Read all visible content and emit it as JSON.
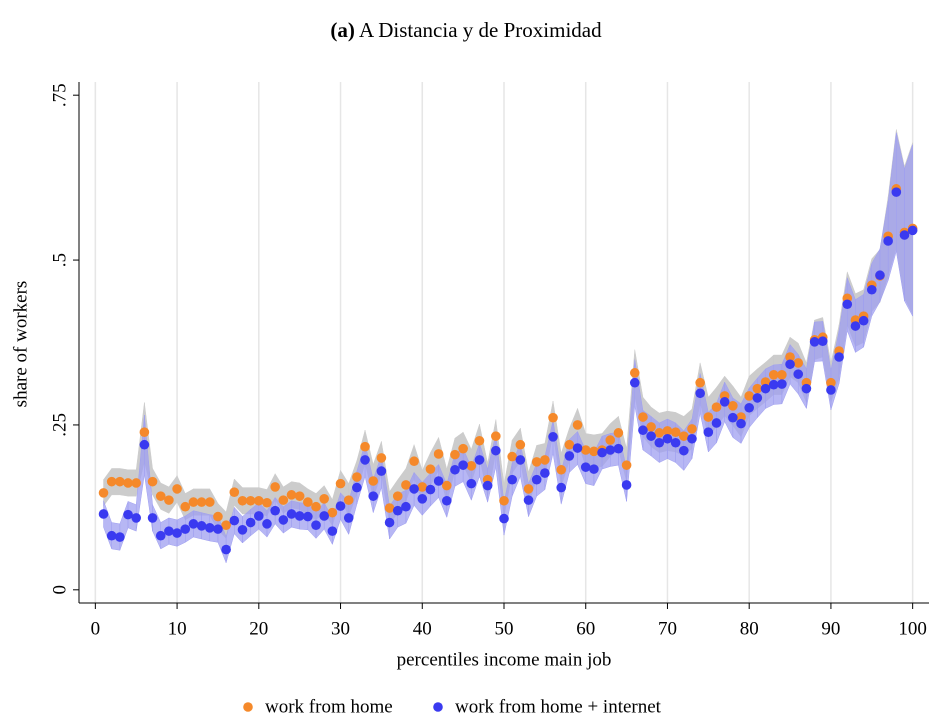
{
  "chart_data": {
    "type": "scatter",
    "panel_label": "(a)",
    "title": "A Distancia y de Proximidad",
    "xlabel": "percentiles income main job",
    "ylabel": "share of workers",
    "x": [
      1,
      2,
      3,
      4,
      5,
      6,
      7,
      8,
      9,
      10,
      11,
      12,
      13,
      14,
      15,
      16,
      17,
      18,
      19,
      20,
      21,
      22,
      23,
      24,
      25,
      26,
      27,
      28,
      29,
      30,
      31,
      32,
      33,
      34,
      35,
      36,
      37,
      38,
      39,
      40,
      41,
      42,
      43,
      44,
      45,
      46,
      47,
      48,
      49,
      50,
      51,
      52,
      53,
      54,
      55,
      56,
      57,
      58,
      59,
      60,
      61,
      62,
      63,
      64,
      65,
      66,
      67,
      68,
      69,
      70,
      71,
      72,
      73,
      74,
      75,
      76,
      77,
      78,
      79,
      80,
      81,
      82,
      83,
      84,
      85,
      86,
      87,
      88,
      89,
      90,
      91,
      92,
      93,
      94,
      95,
      96,
      97,
      98,
      99,
      100
    ],
    "xlim": [
      -2,
      102
    ],
    "xticks": [
      0,
      10,
      20,
      30,
      40,
      50,
      60,
      70,
      80,
      90,
      100
    ],
    "ylim": [
      -0.02,
      0.77
    ],
    "yticks": [
      0,
      {
        "value": 0.25,
        "label": ".25"
      },
      {
        "value": 0.5,
        "label": ".5"
      },
      {
        "value": 0.75,
        "label": ".75"
      }
    ],
    "grid_x": true,
    "legend": "bottom",
    "series": [
      {
        "name": "work from home",
        "color": "#f5892a",
        "band_color": "#cccccc",
        "values": [
          0.147,
          0.164,
          0.164,
          0.162,
          0.162,
          0.239,
          0.164,
          0.142,
          0.136,
          0.153,
          0.126,
          0.133,
          0.133,
          0.133,
          0.111,
          0.098,
          0.148,
          0.135,
          0.135,
          0.135,
          0.132,
          0.156,
          0.136,
          0.144,
          0.142,
          0.133,
          0.126,
          0.138,
          0.117,
          0.161,
          0.136,
          0.171,
          0.217,
          0.165,
          0.2,
          0.124,
          0.142,
          0.159,
          0.195,
          0.156,
          0.183,
          0.206,
          0.158,
          0.205,
          0.214,
          0.188,
          0.226,
          0.167,
          0.233,
          0.135,
          0.202,
          0.22,
          0.153,
          0.194,
          0.197,
          0.261,
          0.182,
          0.22,
          0.25,
          0.212,
          0.21,
          0.212,
          0.227,
          0.238,
          0.189,
          0.329,
          0.262,
          0.247,
          0.238,
          0.241,
          0.239,
          0.233,
          0.244,
          0.314,
          0.262,
          0.277,
          0.294,
          0.279,
          0.262,
          0.294,
          0.305,
          0.315,
          0.326,
          0.326,
          0.353,
          0.344,
          0.314,
          0.379,
          0.383,
          0.314,
          0.362,
          0.442,
          0.409,
          0.415,
          0.462,
          0.476,
          0.536,
          0.608,
          0.542,
          0.548
        ],
        "errors": [
          0.02,
          0.02,
          0.02,
          0.02,
          0.02,
          0.045,
          0.02,
          0.02,
          0.02,
          0.02,
          0.02,
          0.02,
          0.02,
          0.02,
          0.02,
          0.02,
          0.02,
          0.02,
          0.02,
          0.02,
          0.02,
          0.02,
          0.02,
          0.02,
          0.02,
          0.02,
          0.02,
          0.02,
          0.02,
          0.02,
          0.025,
          0.025,
          0.025,
          0.025,
          0.025,
          0.025,
          0.025,
          0.025,
          0.025,
          0.025,
          0.025,
          0.025,
          0.025,
          0.025,
          0.025,
          0.025,
          0.025,
          0.025,
          0.025,
          0.025,
          0.025,
          0.025,
          0.025,
          0.025,
          0.025,
          0.025,
          0.025,
          0.025,
          0.025,
          0.025,
          0.025,
          0.025,
          0.025,
          0.025,
          0.025,
          0.035,
          0.03,
          0.03,
          0.03,
          0.03,
          0.03,
          0.03,
          0.03,
          0.03,
          0.03,
          0.03,
          0.03,
          0.03,
          0.03,
          0.03,
          0.03,
          0.03,
          0.03,
          0.03,
          0.03,
          0.03,
          0.03,
          0.03,
          0.03,
          0.03,
          0.04,
          0.04,
          0.04,
          0.04,
          0.04,
          0.04,
          0.06,
          0.09,
          0.1,
          0.13
        ]
      },
      {
        "name": "work from home + internet",
        "color": "#3a3af0",
        "band_color": "#9f9ff0",
        "values": [
          0.115,
          0.082,
          0.08,
          0.114,
          0.109,
          0.22,
          0.109,
          0.082,
          0.089,
          0.086,
          0.092,
          0.1,
          0.097,
          0.094,
          0.092,
          0.061,
          0.105,
          0.091,
          0.102,
          0.112,
          0.1,
          0.12,
          0.106,
          0.115,
          0.112,
          0.111,
          0.098,
          0.112,
          0.089,
          0.127,
          0.109,
          0.155,
          0.197,
          0.142,
          0.18,
          0.102,
          0.12,
          0.126,
          0.153,
          0.138,
          0.152,
          0.165,
          0.135,
          0.182,
          0.189,
          0.161,
          0.197,
          0.158,
          0.211,
          0.108,
          0.167,
          0.197,
          0.136,
          0.167,
          0.177,
          0.232,
          0.155,
          0.203,
          0.215,
          0.186,
          0.183,
          0.208,
          0.212,
          0.214,
          0.159,
          0.314,
          0.242,
          0.233,
          0.223,
          0.229,
          0.223,
          0.211,
          0.229,
          0.298,
          0.239,
          0.253,
          0.285,
          0.261,
          0.252,
          0.276,
          0.291,
          0.305,
          0.311,
          0.312,
          0.342,
          0.327,
          0.305,
          0.376,
          0.377,
          0.303,
          0.353,
          0.433,
          0.4,
          0.408,
          0.455,
          0.477,
          0.529,
          0.603,
          0.538,
          0.545
        ],
        "errors": [
          0.02,
          0.02,
          0.02,
          0.02,
          0.02,
          0.045,
          0.02,
          0.02,
          0.02,
          0.02,
          0.02,
          0.02,
          0.02,
          0.02,
          0.02,
          0.02,
          0.02,
          0.02,
          0.02,
          0.02,
          0.02,
          0.02,
          0.02,
          0.02,
          0.02,
          0.02,
          0.02,
          0.02,
          0.02,
          0.02,
          0.025,
          0.025,
          0.025,
          0.025,
          0.025,
          0.025,
          0.025,
          0.025,
          0.025,
          0.025,
          0.025,
          0.025,
          0.025,
          0.025,
          0.025,
          0.025,
          0.025,
          0.025,
          0.025,
          0.025,
          0.025,
          0.025,
          0.025,
          0.025,
          0.025,
          0.025,
          0.025,
          0.025,
          0.025,
          0.025,
          0.025,
          0.025,
          0.025,
          0.025,
          0.025,
          0.035,
          0.03,
          0.03,
          0.03,
          0.03,
          0.03,
          0.03,
          0.03,
          0.03,
          0.03,
          0.03,
          0.03,
          0.03,
          0.03,
          0.03,
          0.03,
          0.03,
          0.03,
          0.03,
          0.03,
          0.03,
          0.03,
          0.03,
          0.03,
          0.03,
          0.04,
          0.04,
          0.04,
          0.04,
          0.04,
          0.04,
          0.06,
          0.09,
          0.1,
          0.13
        ]
      }
    ]
  }
}
